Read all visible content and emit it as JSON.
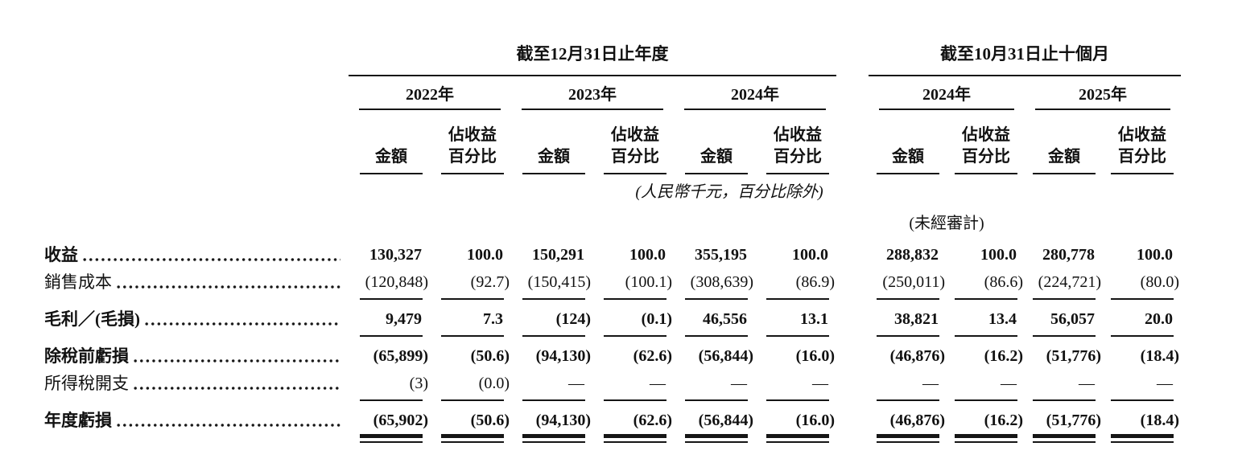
{
  "colors": {
    "text": "#111111",
    "background": "#ffffff",
    "rule": "#151515"
  },
  "table": {
    "period_groups": [
      {
        "title": "截至12月31日止年度",
        "years": [
          "2022年",
          "2023年",
          "2024年"
        ]
      },
      {
        "title": "截至10月31日止十個月",
        "years": [
          "2024年",
          "2025年"
        ]
      }
    ],
    "col_headers": {
      "amount": "金額",
      "pct_line1": "佔收益",
      "pct_line2": "百分比"
    },
    "notes": {
      "units": "(人民幣千元，百分比除外)",
      "unaudited": "(未經審計)"
    },
    "rows": [
      {
        "label": "收益",
        "bold": true,
        "values": [
          "130,327",
          "100.0",
          "150,291",
          "100.0",
          "355,195",
          "100.0",
          "288,832",
          "100.0",
          "280,778",
          "100.0"
        ],
        "rule_after": "none"
      },
      {
        "label": "銷售成本",
        "bold": false,
        "values": [
          "(120,848)",
          "(92.7)",
          "(150,415)",
          "(100.1)",
          "(308,639)",
          "(86.9)",
          "(250,011)",
          "(86.6)",
          "(224,721)",
          "(80.0)"
        ],
        "rule_after": "single"
      },
      {
        "label": "毛利／(毛損)",
        "bold": true,
        "values": [
          "9,479",
          "7.3",
          "(124)",
          "(0.1)",
          "46,556",
          "13.1",
          "38,821",
          "13.4",
          "56,057",
          "20.0"
        ],
        "rule_after": "single"
      },
      {
        "label": "除稅前虧損",
        "bold": true,
        "values": [
          "(65,899)",
          "(50.6)",
          "(94,130)",
          "(62.6)",
          "(56,844)",
          "(16.0)",
          "(46,876)",
          "(16.2)",
          "(51,776)",
          "(18.4)"
        ],
        "rule_after": "none"
      },
      {
        "label": "所得稅開支",
        "bold": false,
        "values": [
          "(3)",
          "(0.0)",
          "—",
          "—",
          "—",
          "—",
          "—",
          "—",
          "—",
          "—"
        ],
        "rule_after": "single"
      },
      {
        "label": "年度虧損",
        "bold": true,
        "values": [
          "(65,902)",
          "(50.6)",
          "(94,130)",
          "(62.6)",
          "(56,844)",
          "(16.0)",
          "(46,876)",
          "(16.2)",
          "(51,776)",
          "(18.4)"
        ],
        "rule_after": "double"
      }
    ]
  }
}
